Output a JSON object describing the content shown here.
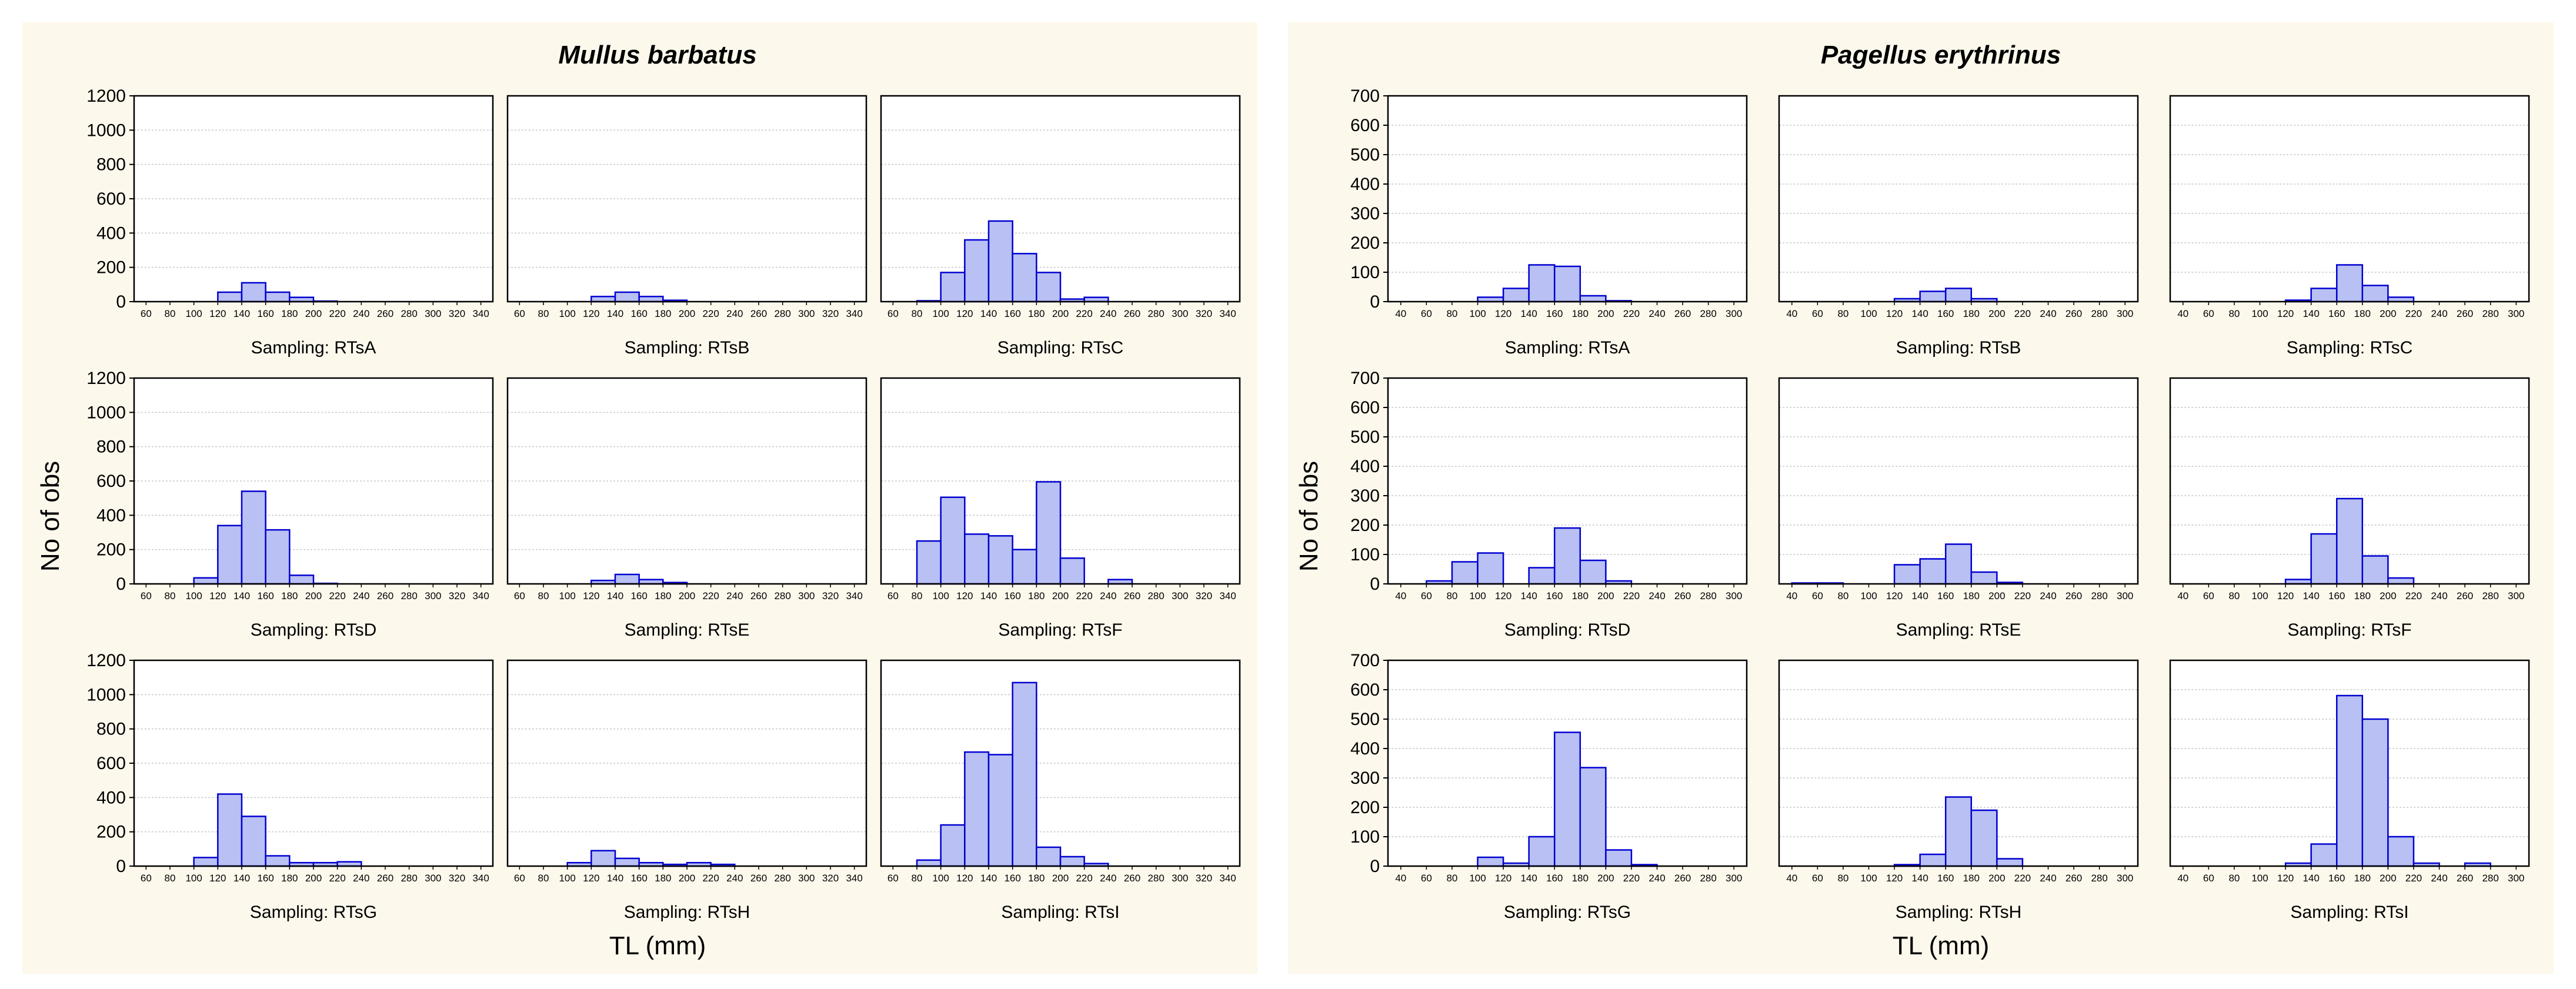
{
  "chart_data": [
    {
      "type": "bar",
      "title": "Mullus barbatus",
      "ylabel": "No of obs",
      "xlabel": "TL (mm)",
      "ylim": [
        0,
        1200
      ],
      "yticks": [
        0,
        200,
        400,
        600,
        800,
        1000,
        1200
      ],
      "xlim": [
        50,
        350
      ],
      "xticks": [
        60,
        80,
        100,
        120,
        140,
        160,
        180,
        200,
        220,
        240,
        260,
        280,
        300,
        320,
        340
      ],
      "bin_width": 20,
      "bin_centers": [
        70,
        90,
        110,
        130,
        150,
        170,
        190,
        210,
        230,
        250,
        270,
        290,
        310,
        330
      ],
      "color": "#b9c0f4",
      "edge_color": "#0000d0",
      "subplots": [
        {
          "label": "Sampling: RTsA",
          "values": [
            0,
            0,
            0,
            55,
            110,
            55,
            25,
            3,
            0,
            0,
            0,
            0,
            0,
            0
          ]
        },
        {
          "label": "Sampling: RTsB",
          "values": [
            0,
            0,
            0,
            30,
            55,
            30,
            8,
            0,
            0,
            0,
            0,
            0,
            0,
            0
          ]
        },
        {
          "label": "Sampling: RTsC",
          "values": [
            0,
            5,
            170,
            360,
            470,
            280,
            170,
            15,
            25,
            0,
            0,
            0,
            0,
            0
          ]
        },
        {
          "label": "Sampling: RTsD",
          "values": [
            0,
            0,
            35,
            340,
            540,
            315,
            50,
            3,
            0,
            0,
            0,
            0,
            0,
            0
          ]
        },
        {
          "label": "Sampling: RTsE",
          "values": [
            0,
            0,
            0,
            20,
            55,
            25,
            8,
            0,
            0,
            0,
            0,
            0,
            0,
            0
          ]
        },
        {
          "label": "Sampling: RTsF",
          "values": [
            0,
            250,
            505,
            290,
            280,
            200,
            595,
            150,
            0,
            25,
            0,
            0,
            0,
            0
          ]
        },
        {
          "label": "Sampling: RTsG",
          "values": [
            0,
            0,
            50,
            420,
            290,
            60,
            20,
            20,
            25,
            0,
            0,
            0,
            0,
            0
          ]
        },
        {
          "label": "Sampling: RTsH",
          "values": [
            0,
            0,
            20,
            90,
            45,
            20,
            10,
            20,
            10,
            0,
            0,
            0,
            0,
            0
          ]
        },
        {
          "label": "Sampling: RTsI",
          "values": [
            0,
            35,
            240,
            665,
            650,
            1070,
            110,
            55,
            15,
            0,
            0,
            0,
            0,
            0
          ]
        }
      ]
    },
    {
      "type": "bar",
      "title": "Pagellus erythrinus",
      "ylabel": "No of obs",
      "xlabel": "TL (mm)",
      "ylim": [
        0,
        700
      ],
      "yticks": [
        0,
        100,
        200,
        300,
        400,
        500,
        600,
        700
      ],
      "xlim": [
        30,
        310
      ],
      "xticks": [
        40,
        60,
        80,
        100,
        120,
        140,
        160,
        180,
        200,
        220,
        240,
        260,
        280,
        300
      ],
      "bin_width": 20,
      "bin_centers": [
        50,
        70,
        90,
        110,
        130,
        150,
        170,
        190,
        210,
        230,
        250,
        270,
        290
      ],
      "color": "#b9c0f4",
      "edge_color": "#0000d0",
      "subplots": [
        {
          "label": "Sampling: RTsA",
          "values": [
            0,
            0,
            0,
            15,
            45,
            125,
            120,
            20,
            3,
            0,
            0,
            0,
            0
          ]
        },
        {
          "label": "Sampling: RTsB",
          "values": [
            0,
            0,
            0,
            0,
            10,
            35,
            45,
            10,
            0,
            0,
            0,
            0,
            0
          ]
        },
        {
          "label": "Sampling: RTsC",
          "values": [
            0,
            0,
            0,
            0,
            5,
            45,
            125,
            55,
            15,
            0,
            0,
            0,
            0
          ]
        },
        {
          "label": "Sampling: RTsD",
          "values": [
            0,
            10,
            75,
            105,
            0,
            55,
            190,
            80,
            10,
            0,
            0,
            0,
            0
          ]
        },
        {
          "label": "Sampling: RTsE",
          "values": [
            3,
            3,
            0,
            0,
            65,
            85,
            135,
            40,
            5,
            0,
            0,
            0,
            0
          ]
        },
        {
          "label": "Sampling: RTsF",
          "values": [
            0,
            0,
            0,
            0,
            15,
            170,
            290,
            95,
            20,
            0,
            0,
            0,
            0
          ]
        },
        {
          "label": "Sampling: RTsG",
          "values": [
            0,
            0,
            0,
            30,
            10,
            100,
            455,
            335,
            55,
            5,
            0,
            0,
            0
          ]
        },
        {
          "label": "Sampling: RTsH",
          "values": [
            0,
            0,
            0,
            0,
            5,
            40,
            235,
            190,
            25,
            0,
            0,
            0,
            0
          ]
        },
        {
          "label": "Sampling: RTsI",
          "values": [
            0,
            0,
            0,
            0,
            10,
            75,
            580,
            500,
            100,
            10,
            0,
            10,
            0
          ]
        }
      ]
    }
  ]
}
